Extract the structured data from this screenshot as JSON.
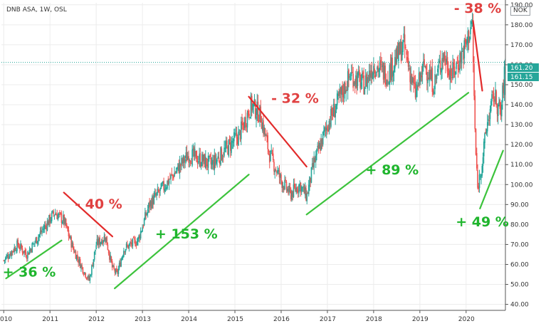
{
  "header": {
    "symbol_text": "DNB ASA, 1W, OSL",
    "currency": "NOK"
  },
  "price_tags": {
    "close": "161.20",
    "prev": "161.15"
  },
  "colors": {
    "up": "#26a69a",
    "down": "#ef5350",
    "rise_line": "#3cc33c",
    "fall_line": "#e22a2a",
    "rise_text": "#1fb52d",
    "fall_text": "#e04141",
    "tag_bg": "#26a69a"
  },
  "chart_data": {
    "type": "candlestick",
    "title": "DNB ASA, 1W, OSL",
    "currency": "NOK",
    "x_tick_labels": [
      "2010",
      "2011",
      "2012",
      "2013",
      "2014",
      "2015",
      "2016",
      "2017",
      "2018",
      "2019",
      "2020"
    ],
    "y_tick_labels": [
      "190.00",
      "180.00",
      "170.00",
      "160.00",
      "150.00",
      "140.00",
      "130.00",
      "120.00",
      "110.00",
      "100.00",
      "90.00",
      "80.00",
      "70.00",
      "60.00",
      "50.00",
      "40.00"
    ],
    "ylim": [
      37,
      191
    ],
    "xlim": [
      2009.95,
      2020.85
    ],
    "grid": true,
    "last_close": 161.2,
    "price_path": [
      [
        2010.0,
        62
      ],
      [
        2010.3,
        70
      ],
      [
        2010.5,
        65
      ],
      [
        2010.8,
        76
      ],
      [
        2011.1,
        86
      ],
      [
        2011.3,
        82
      ],
      [
        2011.5,
        68
      ],
      [
        2011.7,
        58
      ],
      [
        2011.85,
        52
      ],
      [
        2012.0,
        70
      ],
      [
        2012.2,
        74
      ],
      [
        2012.35,
        58
      ],
      [
        2012.45,
        55
      ],
      [
        2012.6,
        68
      ],
      [
        2012.9,
        72
      ],
      [
        2013.15,
        90
      ],
      [
        2013.5,
        100
      ],
      [
        2014.0,
        115
      ],
      [
        2014.5,
        110
      ],
      [
        2014.9,
        120
      ],
      [
        2015.1,
        125
      ],
      [
        2015.35,
        140
      ],
      [
        2015.55,
        135
      ],
      [
        2015.75,
        115
      ],
      [
        2016.0,
        102
      ],
      [
        2016.2,
        95
      ],
      [
        2016.4,
        100
      ],
      [
        2016.55,
        94
      ],
      [
        2016.7,
        110
      ],
      [
        2017.0,
        130
      ],
      [
        2017.3,
        145
      ],
      [
        2017.5,
        155
      ],
      [
        2017.8,
        150
      ],
      [
        2018.0,
        160
      ],
      [
        2018.3,
        155
      ],
      [
        2018.65,
        170
      ],
      [
        2018.9,
        145
      ],
      [
        2019.1,
        160
      ],
      [
        2019.3,
        150
      ],
      [
        2019.5,
        165
      ],
      [
        2019.7,
        155
      ],
      [
        2019.9,
        165
      ],
      [
        2020.0,
        170
      ],
      [
        2020.13,
        182
      ],
      [
        2020.2,
        120
      ],
      [
        2020.25,
        98
      ],
      [
        2020.35,
        112
      ],
      [
        2020.45,
        130
      ],
      [
        2020.6,
        145
      ],
      [
        2020.75,
        135
      ],
      [
        2020.85,
        161
      ]
    ],
    "annotations": [
      {
        "text": "+ 36 %",
        "kind": "rise",
        "line": [
          [
            2010.05,
            53
          ],
          [
            2011.25,
            72
          ]
        ],
        "label_at": [
          2010.55,
          54
        ]
      },
      {
        "text": "- 40 %",
        "kind": "fall",
        "line": [
          [
            2011.3,
            96
          ],
          [
            2012.35,
            74
          ]
        ],
        "label_at": [
          2012.05,
          88
        ]
      },
      {
        "text": "+ 153 %",
        "kind": "rise",
        "line": [
          [
            2012.4,
            48
          ],
          [
            2015.3,
            105
          ]
        ],
        "label_at": [
          2013.95,
          73
        ]
      },
      {
        "text": "- 32 %",
        "kind": "fall",
        "line": [
          [
            2015.3,
            144
          ],
          [
            2016.55,
            109
          ]
        ],
        "label_at": [
          2016.3,
          141
        ]
      },
      {
        "text": "+ 89 %",
        "kind": "rise",
        "line": [
          [
            2016.55,
            85
          ],
          [
            2020.05,
            146
          ]
        ],
        "label_at": [
          2018.4,
          105
        ]
      },
      {
        "text": "- 38 %",
        "kind": "fall",
        "line": [
          [
            2020.15,
            182
          ],
          [
            2020.35,
            147
          ]
        ],
        "label_at": [
          2020.25,
          186
        ]
      },
      {
        "text": "+ 49 %",
        "kind": "rise",
        "line": [
          [
            2020.3,
            88
          ],
          [
            2020.8,
            117
          ]
        ],
        "label_at": [
          2020.35,
          79
        ]
      }
    ]
  }
}
